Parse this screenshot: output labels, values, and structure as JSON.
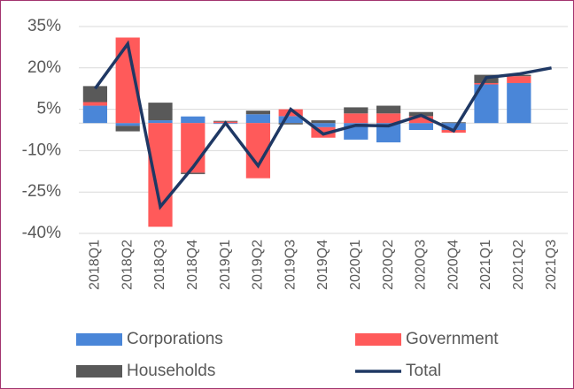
{
  "chart_data": {
    "type": "bar",
    "categories": [
      "2018Q1",
      "2018Q2",
      "2018Q3",
      "2018Q4",
      "2019Q1",
      "2019Q2",
      "2019Q3",
      "2019Q4",
      "2020Q1",
      "2020Q2",
      "2020Q3",
      "2020Q4",
      "2021Q1",
      "2021Q2",
      "2021Q3"
    ],
    "series": [
      {
        "name": "Corporations",
        "color": "#4a86d8",
        "values": [
          6.3,
          -1,
          1,
          2.4,
          -0.3,
          3.2,
          2.5,
          -1.5,
          -6,
          -7,
          -2.5,
          -2.5,
          14,
          14.5,
          null
        ]
      },
      {
        "name": "Government",
        "color": "#ff5a5a",
        "values": [
          1.3,
          31,
          -37.6,
          -18,
          0.5,
          -20,
          2.5,
          -3.8,
          3.5,
          3.5,
          2.5,
          -1,
          0.5,
          2.5,
          null
        ]
      },
      {
        "name": "Households",
        "color": "#595959",
        "values": [
          5.8,
          -2,
          6.4,
          -0.5,
          0.3,
          1.3,
          -0.5,
          1,
          2.2,
          2.8,
          1.5,
          0.3,
          3,
          0.5,
          null
        ]
      },
      {
        "name": "Total",
        "type": "line",
        "color": "#1f3864",
        "values": [
          12.5,
          28.7,
          -30.3,
          -16,
          0,
          -15.5,
          5,
          -4,
          -0.8,
          -1,
          2.8,
          -2.8,
          16.5,
          17.8,
          20
        ]
      }
    ],
    "ylim": [
      -40,
      35
    ],
    "yticks": [
      {
        "value": -40,
        "label": "-40%"
      },
      {
        "value": -25,
        "label": "-25%"
      },
      {
        "value": -10,
        "label": "-10%"
      },
      {
        "value": 5,
        "label": "5%"
      },
      {
        "value": 20,
        "label": "20%"
      },
      {
        "value": 35,
        "label": "35%"
      }
    ],
    "grid": true
  }
}
